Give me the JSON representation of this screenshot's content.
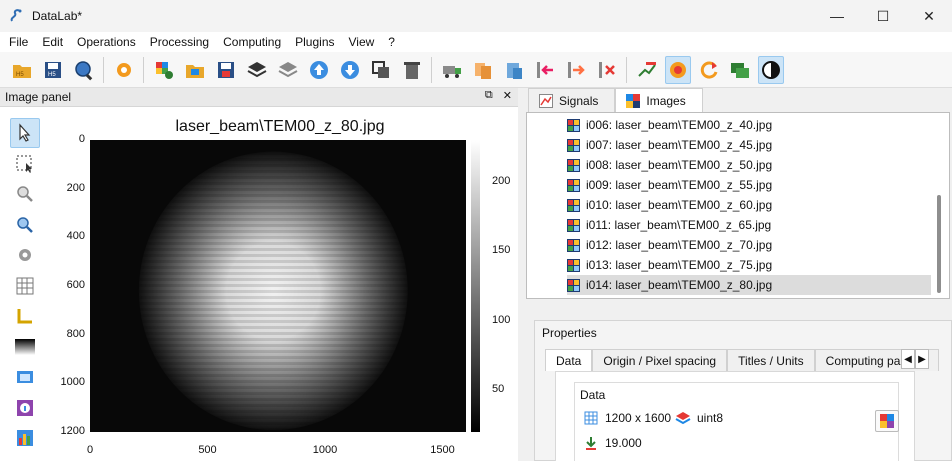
{
  "window": {
    "title": "DataLab*",
    "controls": [
      "—",
      "☐",
      "✕"
    ]
  },
  "menu": [
    "File",
    "Edit",
    "Operations",
    "Processing",
    "Computing",
    "Plugins",
    "View",
    "?"
  ],
  "toolbar_icons": [
    "open-h5-icon",
    "save-h5-icon",
    "browse-h5-icon",
    "settings-icon",
    "new-image-icon",
    "open-image-icon",
    "save-image-icon",
    "layers-icon",
    "layers-gray-icon",
    "move-up-icon",
    "move-down-icon",
    "duplicate-icon",
    "delete-icon",
    "truck-icon",
    "copy-metadata-icon",
    "paste-metadata-icon",
    "import-metadata-icon",
    "export-metadata-icon",
    "delete-metadata-icon",
    "annotations-icon",
    "show-all-icon",
    "refresh-icon",
    "show-labels-icon",
    "dark-mode-icon"
  ],
  "image_panel": {
    "header": "Image panel",
    "header_icons": [
      "⧉",
      "✕"
    ],
    "tools": [
      "pointer-icon",
      "select-area-icon",
      "zoom-icon",
      "zoom-fit-icon",
      "gear-icon",
      "grid-icon",
      "axes-icon",
      "colormap-icon",
      "snapshot-icon",
      "info-icon",
      "histogram-icon"
    ],
    "plot": {
      "title": "laser_beam\\TEM00_z_80.jpg",
      "yticks": [
        "0",
        "200",
        "400",
        "600",
        "800",
        "1000",
        "1200"
      ],
      "xticks": [
        "0",
        "500",
        "1000",
        "1500"
      ],
      "cticks": [
        "200",
        "150",
        "100",
        "50"
      ]
    }
  },
  "chart_data": {
    "type": "heatmap",
    "title": "laser_beam\\TEM00_z_80.jpg",
    "xlim": [
      0,
      1600
    ],
    "ylim": [
      1200,
      0
    ],
    "x_ticks": [
      0,
      500,
      1000,
      1500
    ],
    "y_ticks": [
      0,
      200,
      400,
      600,
      800,
      1000,
      1200
    ],
    "colorbar_ticks": [
      50,
      100,
      150,
      200
    ],
    "colorbar_range": [
      20,
      230
    ],
    "colormap": "gray",
    "beam_center": [
      780,
      620
    ],
    "beam_sigma": 260
  },
  "right_panel": {
    "tabs": [
      "Signals",
      "Images"
    ],
    "list": [
      "i006: laser_beam\\TEM00_z_40.jpg",
      "i007: laser_beam\\TEM00_z_45.jpg",
      "i008: laser_beam\\TEM00_z_50.jpg",
      "i009: laser_beam\\TEM00_z_55.jpg",
      "i010: laser_beam\\TEM00_z_60.jpg",
      "i011: laser_beam\\TEM00_z_65.jpg",
      "i012: laser_beam\\TEM00_z_70.jpg",
      "i013: laser_beam\\TEM00_z_75.jpg",
      "i014: laser_beam\\TEM00_z_80.jpg"
    ],
    "selected_index": 8,
    "properties": {
      "title": "Properties",
      "tabs": [
        "Data",
        "Origin / Pixel spacing",
        "Titles / Units",
        "Computing parame"
      ],
      "arrows": [
        "◀",
        "▶"
      ],
      "group_title": "Data",
      "size": "1200 x 1600",
      "dtype": "uint8",
      "value": "19.000"
    }
  }
}
